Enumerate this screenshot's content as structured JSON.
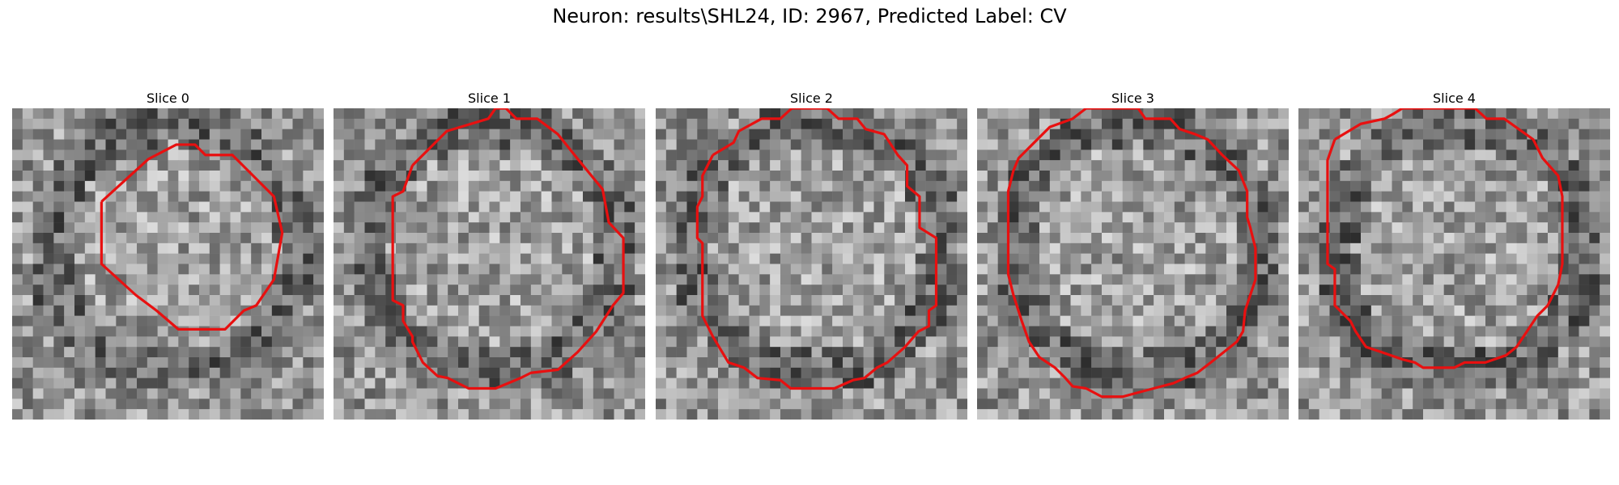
{
  "figure": {
    "title": "Neuron: results\\SHL24, ID: 2967, Predicted Label: CV",
    "contour_color": "#e81010"
  },
  "slices": [
    {
      "title": "Slice 0",
      "seed": 17
    },
    {
      "title": "Slice 1",
      "seed": 53
    },
    {
      "title": "Slice 2",
      "seed": 91
    },
    {
      "title": "Slice 3",
      "seed": 137
    },
    {
      "title": "Slice 4",
      "seed": 211
    }
  ]
}
